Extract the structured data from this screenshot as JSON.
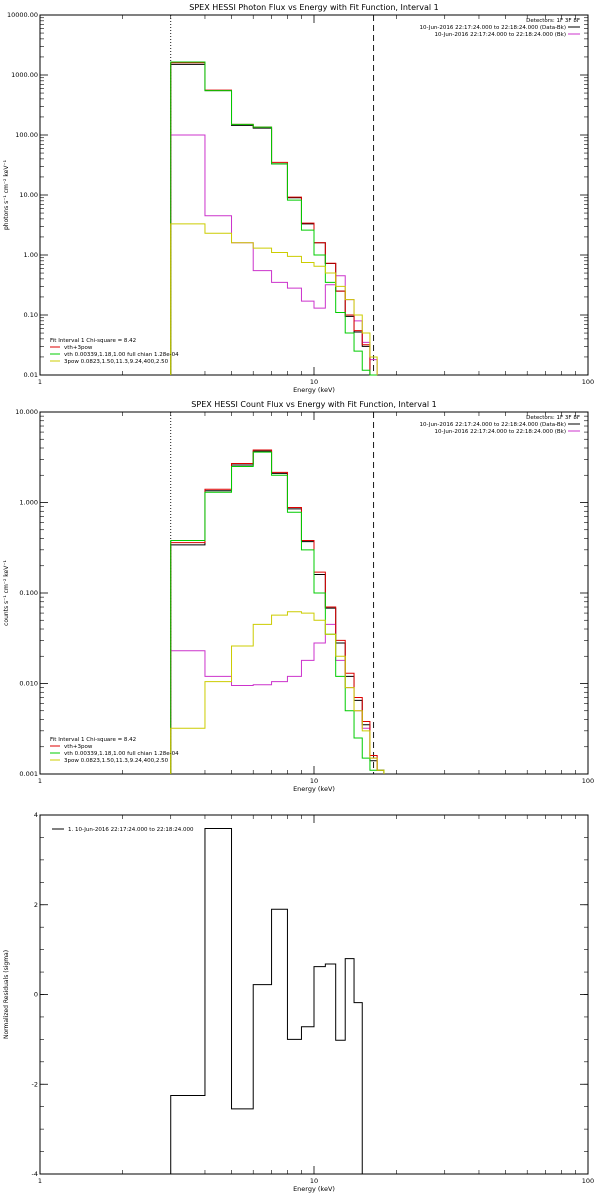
{
  "chart_data": [
    {
      "type": "line",
      "title": "SPEX HESSI Photon Flux vs Energy with Fit Function, Interval 1",
      "xlabel": "Energy (keV)",
      "ylabel": "photons s⁻¹ cm⁻² keV⁻¹",
      "xscale": "log",
      "yscale": "log",
      "xlim": [
        1,
        100
      ],
      "ylim": [
        0.01,
        10000
      ],
      "xticks": [
        "1",
        "10",
        "100"
      ],
      "yticks": [
        "0.01",
        "0.10",
        "1.00",
        "10.00",
        "100.00",
        "1000.00",
        "10000.00"
      ],
      "vlines": [
        {
          "x": 3.0,
          "style": "dotted"
        },
        {
          "x": 16.5,
          "style": "dashed"
        }
      ],
      "legend_top": {
        "header": "Detectors: 1F 3F 8F",
        "entries": [
          {
            "text": "10-Jun-2016 22:17:24.000 to 22:18:24.000 (Data-Bk)",
            "color": "#000000"
          },
          {
            "text": "10-Jun-2016 22:17:24.000 to 22:18:24.000 (Bk)",
            "color": "#cc33cc"
          }
        ]
      },
      "legend_bottom": {
        "header": "Fit Interval 1   Chi-square = 8.42",
        "entries": [
          {
            "text": "vth+3pow",
            "color": "#dd0000"
          },
          {
            "text": "vth 0.00339,1.18,1.00  full chian 1.28e-04",
            "color": "#00cc00"
          },
          {
            "text": "3pow 0.0823,1.50,11.3,9.24,400,2.50",
            "color": "#cccc00"
          }
        ]
      },
      "edges": [
        3.0,
        4.0,
        5.0,
        6.0,
        7.0,
        8.0,
        9.0,
        10.0,
        11.0,
        12.0,
        13.0,
        14.0,
        15.0,
        16.0,
        17.0
      ],
      "series": [
        {
          "name": "Data-Bk",
          "color": "#000000",
          "values": [
            1500,
            550,
            145,
            130,
            33,
            9,
            3.3,
            1.6,
            0.72,
            0.25,
            0.095,
            0.052,
            0.03,
            0.008
          ]
        },
        {
          "name": "Bk",
          "color": "#cc33cc",
          "values": [
            100,
            4.5,
            1.6,
            0.55,
            0.35,
            0.28,
            0.17,
            0.13,
            0.32,
            0.45,
            0.18,
            0.08,
            0.035,
            0.018
          ]
        },
        {
          "name": "vth+3pow",
          "color": "#dd0000",
          "values": [
            1600,
            560,
            150,
            135,
            35,
            9.2,
            3.4,
            1.6,
            0.73,
            0.25,
            0.1,
            0.055,
            0.032,
            0.01
          ]
        },
        {
          "name": "vth 0.00339,1.18,1.00  full chian 1.28e-04",
          "color": "#00cc00",
          "values": [
            1650,
            550,
            150,
            135,
            33,
            8.2,
            2.6,
            1.0,
            0.35,
            0.11,
            0.05,
            0.025,
            0.012,
            0.005
          ]
        },
        {
          "name": "3pow 0.0823,1.50,11.3,9.24,400,2.50",
          "color": "#cccc00",
          "values": [
            3.3,
            2.3,
            1.6,
            1.3,
            1.1,
            0.95,
            0.75,
            0.65,
            0.5,
            0.3,
            0.18,
            0.1,
            0.05,
            0.02
          ]
        }
      ]
    },
    {
      "type": "line",
      "title": "SPEX HESSI Count Flux vs Energy with Fit Function, Interval 1",
      "xlabel": "Energy (keV)",
      "ylabel": "counts s⁻¹ cm⁻² keV⁻¹",
      "xscale": "log",
      "yscale": "log",
      "xlim": [
        1,
        100
      ],
      "ylim": [
        0.001,
        10
      ],
      "xticks": [
        "1",
        "10",
        "100"
      ],
      "yticks": [
        "0.001",
        "0.010",
        "0.100",
        "1.000",
        "10.000"
      ],
      "vlines": [
        {
          "x": 3.0,
          "style": "dotted"
        },
        {
          "x": 16.5,
          "style": "dashed"
        }
      ],
      "legend_top": {
        "header": "Detectors: 1F 3F 8F",
        "entries": [
          {
            "text": "10-Jun-2016 22:17:24.000 to 22:18:24.000 (Data-Bk)",
            "color": "#000000"
          },
          {
            "text": "10-Jun-2016 22:17:24.000 to 22:18:24.000 (Bk)",
            "color": "#cc33cc"
          }
        ]
      },
      "legend_bottom": {
        "header": "Fit Interval 1   Chi-square = 8.42",
        "entries": [
          {
            "text": "vth+3pow",
            "color": "#dd0000"
          },
          {
            "text": "vth 0.00339,1.18,1.00  full chian 1.28e-04",
            "color": "#00cc00"
          },
          {
            "text": "3pow 0.0823,1.50,11.3,9.24,400,2.50",
            "color": "#cccc00"
          }
        ]
      },
      "edges": [
        3.0,
        4.0,
        5.0,
        6.0,
        7.0,
        8.0,
        9.0,
        10.0,
        11.0,
        12.0,
        13.0,
        14.0,
        15.0,
        16.0,
        17.0,
        18.0
      ],
      "series": [
        {
          "name": "Data-Bk",
          "color": "#000000",
          "values": [
            0.34,
            1.35,
            2.6,
            3.7,
            2.1,
            0.85,
            0.37,
            0.16,
            0.068,
            0.028,
            0.012,
            0.0065,
            0.0035,
            0.0014,
            0.0011
          ]
        },
        {
          "name": "Bk",
          "color": "#cc33cc",
          "values": [
            0.023,
            0.012,
            0.0095,
            0.0097,
            0.0105,
            0.012,
            0.018,
            0.028,
            0.045,
            0.018,
            0.009,
            0.005,
            0.0032,
            0.0015,
            0.0011
          ]
        },
        {
          "name": "vth+3pow",
          "color": "#dd0000",
          "values": [
            0.36,
            1.4,
            2.7,
            3.8,
            2.15,
            0.88,
            0.38,
            0.17,
            0.07,
            0.03,
            0.013,
            0.007,
            0.0038,
            0.0016,
            0.0011
          ]
        },
        {
          "name": "vth 0.00339,1.18,1.00  full chian 1.28e-04",
          "color": "#00cc00",
          "values": [
            0.38,
            1.3,
            2.5,
            3.6,
            2.0,
            0.78,
            0.3,
            0.1,
            0.035,
            0.012,
            0.005,
            0.0025,
            0.0015,
            0.0011,
            0.0011
          ]
        },
        {
          "name": "3pow 0.0823,1.50,11.3,9.24,400,2.50",
          "color": "#cccc00",
          "values": [
            0.0032,
            0.0105,
            0.026,
            0.045,
            0.057,
            0.062,
            0.06,
            0.05,
            0.035,
            0.02,
            0.009,
            0.005,
            0.003,
            0.0015,
            0.0011
          ]
        }
      ]
    },
    {
      "type": "line",
      "title": "",
      "xlabel": "Energy (keV)",
      "ylabel": "Normalized Residuals (sigma)",
      "xscale": "log",
      "yscale": "linear",
      "xlim": [
        1,
        100
      ],
      "ylim": [
        -4,
        4
      ],
      "xticks": [
        "1",
        "10",
        "100"
      ],
      "yticks": [
        "-4",
        "-2",
        "0",
        "2",
        "4"
      ],
      "legend_top": {
        "header": "",
        "entries": [
          {
            "text": "1. 10-Jun-2016 22:17:24.000 to 22:18:24.000",
            "color": "#000000"
          }
        ]
      },
      "edges": [
        3.0,
        4.0,
        5.0,
        6.0,
        7.0,
        8.0,
        9.0,
        10.0,
        11.0,
        12.0,
        13.0,
        14.0,
        15.0,
        16.5
      ],
      "series": [
        {
          "name": "1. 10-Jun-2016 22:17:24.000 to 22:18:24.000",
          "color": "#000000",
          "values": [
            -2.25,
            3.7,
            -2.55,
            0.22,
            1.9,
            -1.0,
            -0.72,
            0.62,
            0.68,
            -1.02,
            0.8,
            -0.18,
            -4.0
          ]
        }
      ]
    }
  ]
}
